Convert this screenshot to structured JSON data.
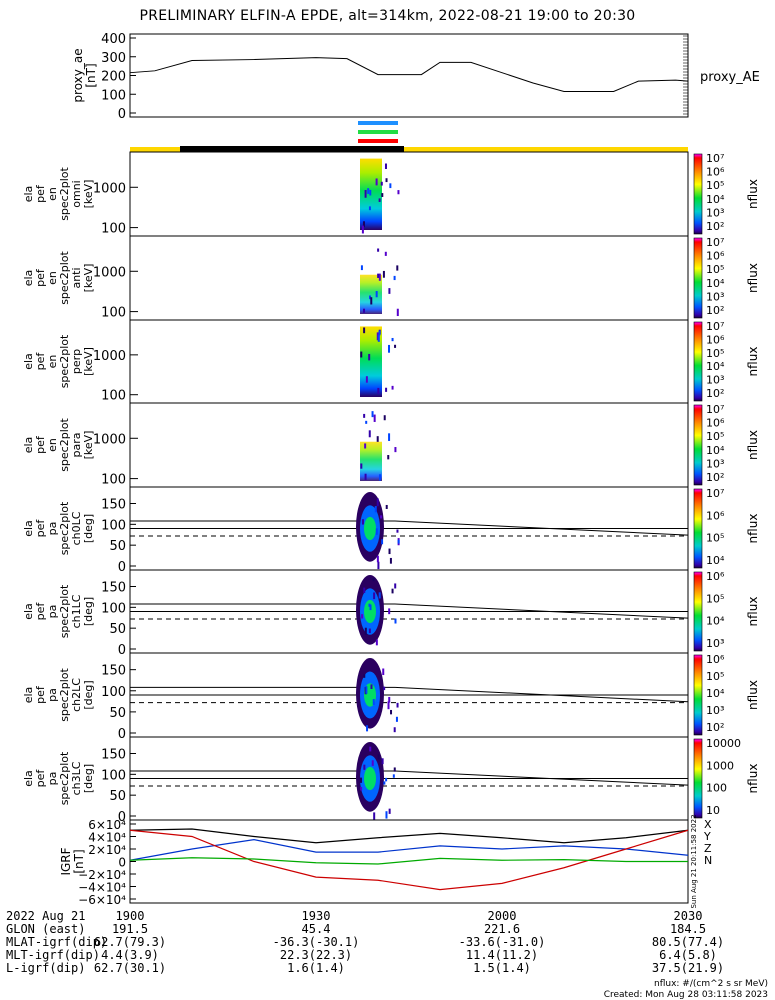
{
  "title": "PRELIMINARY ELFIN-A EPDE, alt=314km, 2022-08-21 19:00 to 20:30",
  "chart_data": [
    {
      "type": "line",
      "panel": "proxy_ae",
      "ylabel": [
        "proxy_ae",
        "[nT]"
      ],
      "legend": "proxy_AE",
      "yticks": [
        "400",
        "300",
        "200",
        "100",
        "0"
      ],
      "ylim": [
        0,
        400
      ],
      "x_minutes": [
        0,
        4,
        10,
        20,
        30,
        35,
        40,
        47,
        50,
        55,
        60,
        65,
        70,
        78,
        82,
        88,
        90
      ],
      "values": [
        215,
        225,
        280,
        285,
        295,
        290,
        205,
        205,
        270,
        270,
        215,
        160,
        115,
        115,
        170,
        175,
        170
      ]
    },
    {
      "type": "heatmap",
      "panel": "en omni",
      "ylabel": [
        "ela",
        "pef",
        "en",
        "spec2plot",
        "omni",
        "[keV]"
      ],
      "yticks": [
        "1000",
        "100"
      ],
      "colorbar": [
        "10⁷",
        "10⁶",
        "10⁵",
        "10⁴",
        "10³",
        "10²"
      ],
      "zlabel": "nflux"
    },
    {
      "type": "heatmap",
      "panel": "en anti",
      "ylabel": [
        "ela",
        "pef",
        "en",
        "spec2plot",
        "anti",
        "[keV]"
      ],
      "yticks": [
        "1000",
        "100"
      ],
      "colorbar": [
        "10⁷",
        "10⁶",
        "10⁵",
        "10⁴",
        "10³",
        "10²"
      ],
      "zlabel": "nflux"
    },
    {
      "type": "heatmap",
      "panel": "en perp",
      "ylabel": [
        "ela",
        "pef",
        "en",
        "spec2plot",
        "perp",
        "[keV]"
      ],
      "yticks": [
        "1000",
        "100"
      ],
      "colorbar": [
        "10⁷",
        "10⁶",
        "10⁵",
        "10⁴",
        "10³",
        "10²"
      ],
      "zlabel": "nflux"
    },
    {
      "type": "heatmap",
      "panel": "en para",
      "ylabel": [
        "ela",
        "pef",
        "en",
        "spec2plot",
        "para",
        "[keV]"
      ],
      "yticks": [
        "1000",
        "100"
      ],
      "colorbar": [
        "10⁷",
        "10⁶",
        "10⁵",
        "10⁴",
        "10³",
        "10²"
      ],
      "zlabel": "nflux"
    },
    {
      "type": "heatmap",
      "panel": "pa ch0LC",
      "ylabel": [
        "ela",
        "pef",
        "pa",
        "spec2plot",
        "ch0LC",
        "[deg]"
      ],
      "yticks": [
        "150",
        "100",
        "50",
        "0"
      ],
      "colorbar": [
        "10⁷",
        "10⁶",
        "10⁵",
        "10⁴"
      ],
      "zlabel": "nflux"
    },
    {
      "type": "heatmap",
      "panel": "pa ch1LC",
      "ylabel": [
        "ela",
        "pef",
        "pa",
        "spec2plot",
        "ch1LC",
        "[deg]"
      ],
      "yticks": [
        "150",
        "100",
        "50",
        "0"
      ],
      "colorbar": [
        "10⁶",
        "10⁵",
        "10⁴",
        "10³"
      ],
      "zlabel": "nflux"
    },
    {
      "type": "heatmap",
      "panel": "pa ch2LC",
      "ylabel": [
        "ela",
        "pef",
        "pa",
        "spec2plot",
        "ch2LC",
        "[deg]"
      ],
      "yticks": [
        "150",
        "100",
        "50",
        "0"
      ],
      "colorbar": [
        "10⁶",
        "10⁵",
        "10⁴",
        "10³",
        "10²"
      ],
      "zlabel": "nflux"
    },
    {
      "type": "heatmap",
      "panel": "pa ch3LC",
      "ylabel": [
        "ela",
        "pef",
        "pa",
        "spec2plot",
        "ch3LC",
        "[deg]"
      ],
      "yticks": [
        "150",
        "100",
        "50",
        "0"
      ],
      "colorbar": [
        "10000",
        "1000",
        "100",
        "10"
      ],
      "zlabel": "nflux"
    },
    {
      "type": "line",
      "panel": "IGRF",
      "ylabel": [
        "IGRF",
        "[nT]"
      ],
      "yticks": [
        "6×10⁴",
        "4×10⁴",
        "2×10⁴",
        "0",
        "−2×10⁴",
        "−4×10⁴",
        "−6×10⁴"
      ],
      "ylim": [
        -60000,
        60000
      ],
      "legend": [
        "X",
        "Y",
        "Z",
        "N"
      ],
      "series": [
        {
          "name": "X",
          "color": "#000000",
          "x_minutes": [
            0,
            10,
            20,
            30,
            40,
            50,
            60,
            70,
            80,
            90
          ],
          "values": [
            50000,
            52000,
            40000,
            30000,
            38000,
            45000,
            38000,
            30000,
            38000,
            50000
          ]
        },
        {
          "name": "Y",
          "color": "#0033cc",
          "x_minutes": [
            0,
            10,
            20,
            30,
            40,
            50,
            60,
            70,
            80,
            90
          ],
          "values": [
            2000,
            20000,
            35000,
            15000,
            15000,
            25000,
            20000,
            25000,
            20000,
            10000
          ]
        },
        {
          "name": "Z",
          "color": "#cc0000",
          "x_minutes": [
            0,
            10,
            20,
            30,
            40,
            50,
            60,
            70,
            80,
            90
          ],
          "values": [
            50000,
            40000,
            0,
            -25000,
            -30000,
            -45000,
            -35000,
            -10000,
            20000,
            50000
          ]
        },
        {
          "name": "N",
          "color": "#00aa00",
          "x_minutes": [
            0,
            10,
            20,
            30,
            40,
            50,
            60,
            70,
            80,
            90
          ],
          "values": [
            2000,
            6000,
            4000,
            -2000,
            -4000,
            5000,
            2000,
            3000,
            0,
            0
          ]
        }
      ],
      "stamp": "Sun Aug 21 20:11:58 2022"
    }
  ],
  "ephemeris": {
    "date": "2022 Aug 21",
    "ticks": [
      "1900",
      "1930",
      "2000",
      "2030"
    ],
    "rows": [
      {
        "label": "GLON (east)",
        "values": [
          "191.5",
          "45.4",
          "221.6",
          "184.5"
        ]
      },
      {
        "label": "MLAT-igrf(dip)",
        "values": [
          "62.7(79.3)",
          "-36.3(-30.1)",
          "-33.6(-31.0)",
          "80.5(77.4)"
        ]
      },
      {
        "label": "MLT-igrf(dip)",
        "values": [
          "4.4(3.9)",
          "22.3(22.3)",
          "11.4(11.2)",
          "6.4(5.8)"
        ]
      },
      {
        "label": "L-igrf(dip)",
        "values": [
          "62.7(30.1)",
          "1.6(1.4)",
          "1.5(1.4)",
          "37.5(21.9)"
        ]
      }
    ]
  },
  "footer": {
    "units": "nflux: #/(cm^2 s sr MeV)",
    "created": "Created: Mon Aug 28 03:11:58 2023"
  },
  "colors": {
    "segment_yellow": "#ffd700",
    "segment_black": "#000000",
    "indicator_blue": "#1e90ff",
    "indicator_green": "#22dd44",
    "indicator_red": "#ff0000"
  }
}
